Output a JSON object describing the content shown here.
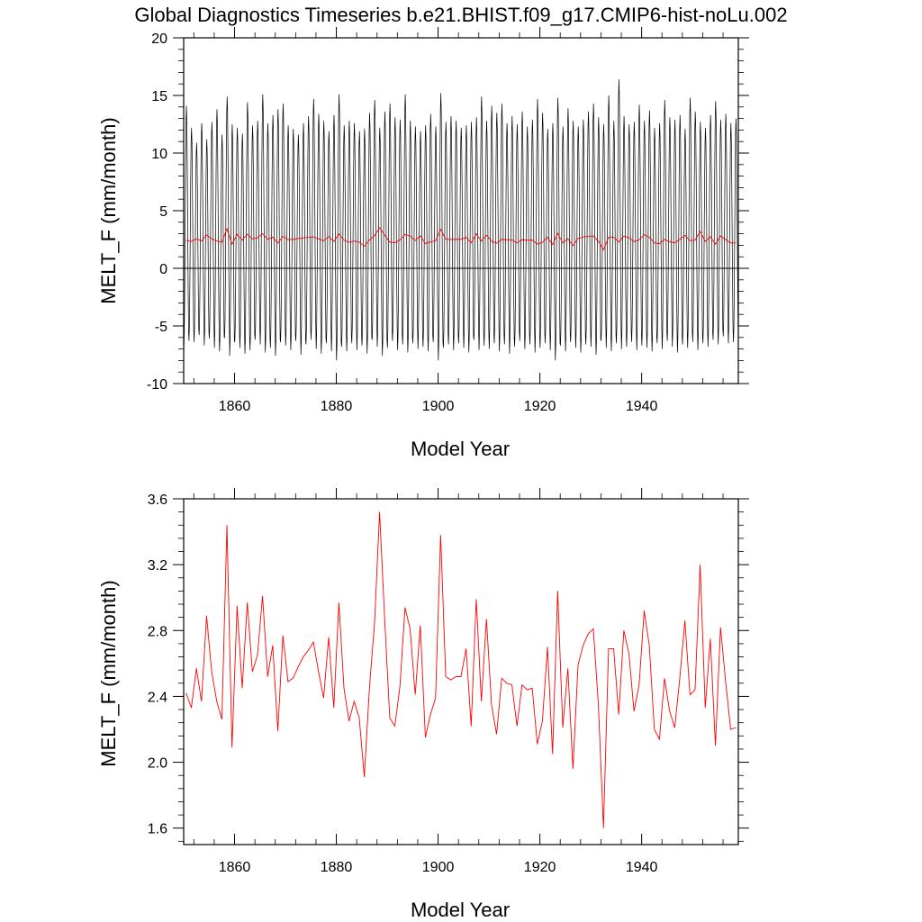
{
  "title": "Global Diagnostics Timeseries b.e21.BHIST.f09_g17.CMIP6-hist-noLu.002",
  "colors": {
    "monthly": "#000000",
    "annual": "#ff0000",
    "axes": "#000000",
    "background": "#ffffff"
  },
  "chart_data": [
    {
      "type": "line",
      "xlabel": "Model Year",
      "ylabel": "MELT_F (mm/month)",
      "xlim": [
        1850,
        1959
      ],
      "ylim": [
        -10,
        20
      ],
      "xticks": [
        1860,
        1880,
        1900,
        1920,
        1940
      ],
      "yticks": [
        -10,
        -5,
        0,
        5,
        10,
        15,
        20
      ],
      "ytick_labels": [
        "-10",
        "-5",
        "0",
        "5",
        "10",
        "15",
        "20"
      ],
      "reference_line_y": 0,
      "series": [
        {
          "color": "#000000",
          "kind": "monthly",
          "annual_max": [
            14.1,
            12.2,
            10.9,
            12.6,
            11.2,
            12.7,
            13.8,
            11.6,
            14.9,
            12.5,
            12.2,
            11.7,
            14.4,
            12.4,
            12.8,
            15.1,
            12.6,
            13.3,
            13.8,
            14.3,
            12.4,
            12.1,
            11.6,
            12.6,
            13.2,
            14.7,
            13.4,
            12.8,
            11.9,
            13.3,
            15.1,
            12.4,
            12.8,
            12.6,
            11.9,
            12.1,
            13.5,
            14.6,
            12.2,
            13.6,
            14.3,
            13.1,
            12.9,
            15.1,
            12.8,
            12.3,
            11.9,
            12.4,
            13.4,
            12.3,
            15.2,
            12.7,
            13.2,
            12.8,
            12.2,
            12.4,
            12.7,
            13.1,
            14.9,
            12.8,
            14.1,
            13.5,
            14.3,
            12.6,
            13.2,
            12.5,
            13.6,
            12.3,
            12.9,
            14.7,
            13.5,
            12.1,
            12.6,
            14.8,
            12.3,
            13.9,
            12.8,
            12.3,
            12.9,
            13.6,
            14.3,
            13.1,
            12.5,
            15.0,
            12.8,
            16.4,
            13.2,
            12.5,
            12.7,
            14.2,
            12.8,
            13.7,
            12.2,
            12.6,
            14.6,
            13.1,
            12.9,
            13.3,
            12.1,
            14.8,
            13.6,
            12.7,
            12.2,
            13.3,
            14.5,
            12.9,
            13.4,
            12.6,
            13.0
          ],
          "annual_min": [
            -6.8,
            -6.3,
            -6.4,
            -5.8,
            -6.7,
            -6.1,
            -6.9,
            -7.2,
            -6.0,
            -7.6,
            -6.4,
            -6.9,
            -7.4,
            -7.1,
            -6.2,
            -6.6,
            -7.3,
            -6.9,
            -7.6,
            -6.4,
            -6.7,
            -7.1,
            -6.3,
            -7.5,
            -6.6,
            -6.2,
            -7.0,
            -7.4,
            -6.5,
            -7.2,
            -8.0,
            -6.8,
            -7.2,
            -6.5,
            -7.1,
            -6.7,
            -7.4,
            -6.2,
            -6.8,
            -7.6,
            -6.9,
            -6.3,
            -7.1,
            -6.6,
            -7.3,
            -6.5,
            -7.0,
            -6.8,
            -7.2,
            -6.4,
            -8.0,
            -6.9,
            -6.6,
            -7.1,
            -6.5,
            -6.9,
            -7.3,
            -6.2,
            -7.1,
            -6.7,
            -7.0,
            -6.5,
            -7.2,
            -6.6,
            -7.4,
            -6.8,
            -6.3,
            -7.0,
            -6.6,
            -7.3,
            -6.9,
            -6.5,
            -7.1,
            -8.0,
            -6.7,
            -7.2,
            -6.4,
            -6.9,
            -7.3,
            -6.6,
            -6.8,
            -7.5,
            -6.3,
            -6.9,
            -7.2,
            -6.5,
            -7.0,
            -6.8,
            -6.4,
            -7.1,
            -6.7,
            -6.9,
            -7.2,
            -6.5,
            -7.0,
            -6.3,
            -6.8,
            -7.3,
            -6.6,
            -6.9,
            -6.4,
            -7.1,
            -6.5,
            -6.8,
            -6.2,
            -6.6,
            -5.9,
            -6.5,
            -6.4
          ]
        },
        {
          "color": "#ff0000",
          "kind": "annual-mean",
          "y": [
            2.42,
            2.33,
            2.57,
            2.37,
            2.89,
            2.55,
            2.37,
            2.26,
            3.44,
            2.09,
            2.95,
            2.45,
            2.97,
            2.55,
            2.65,
            3.01,
            2.52,
            2.71,
            2.19,
            2.77,
            2.49,
            2.51,
            2.58,
            2.64,
            2.68,
            2.73,
            2.55,
            2.39,
            2.76,
            2.33,
            2.97,
            2.45,
            2.25,
            2.37,
            2.27,
            1.91,
            2.45,
            2.84,
            3.52,
            2.87,
            2.27,
            2.22,
            2.46,
            2.94,
            2.81,
            2.41,
            2.83,
            2.15,
            2.29,
            2.39,
            3.38,
            2.52,
            2.5,
            2.52,
            2.52,
            2.69,
            2.22,
            2.99,
            2.37,
            2.87,
            2.35,
            2.17,
            2.51,
            2.48,
            2.47,
            2.22,
            2.47,
            2.44,
            2.45,
            2.11,
            2.25,
            2.7,
            2.05,
            3.04,
            2.21,
            2.57,
            1.96,
            2.59,
            2.71,
            2.78,
            2.81,
            2.35,
            1.6,
            2.69,
            2.69,
            2.29,
            2.8,
            2.66,
            2.31,
            2.47,
            2.92,
            2.71,
            2.2,
            2.14,
            2.51,
            2.31,
            2.21,
            2.51,
            2.86,
            2.41,
            2.44,
            3.2,
            2.33,
            2.75,
            2.1,
            2.82,
            2.49,
            2.2,
            2.21
          ]
        }
      ]
    },
    {
      "type": "line",
      "xlabel": "Model Year",
      "ylabel": "MELT_F (mm/month)",
      "xlim": [
        1850,
        1959
      ],
      "ylim": [
        1.5,
        3.6
      ],
      "xticks": [
        1860,
        1880,
        1900,
        1920,
        1940
      ],
      "yticks": [
        1.6,
        2.0,
        2.4,
        2.8,
        3.2,
        3.6
      ],
      "ytick_labels": [
        "1.6",
        "2.0",
        "2.4",
        "2.8",
        "3.2",
        "3.6"
      ],
      "series": [
        {
          "color": "#ff0000",
          "kind": "annual-mean",
          "y": [
            2.42,
            2.33,
            2.57,
            2.37,
            2.89,
            2.55,
            2.37,
            2.26,
            3.44,
            2.09,
            2.95,
            2.45,
            2.97,
            2.55,
            2.65,
            3.01,
            2.52,
            2.71,
            2.19,
            2.77,
            2.49,
            2.51,
            2.58,
            2.64,
            2.68,
            2.73,
            2.55,
            2.39,
            2.76,
            2.33,
            2.97,
            2.45,
            2.25,
            2.37,
            2.27,
            1.91,
            2.45,
            2.84,
            3.52,
            2.87,
            2.27,
            2.22,
            2.46,
            2.94,
            2.81,
            2.41,
            2.83,
            2.15,
            2.29,
            2.39,
            3.38,
            2.52,
            2.5,
            2.52,
            2.52,
            2.69,
            2.22,
            2.99,
            2.37,
            2.87,
            2.35,
            2.17,
            2.51,
            2.48,
            2.47,
            2.22,
            2.47,
            2.44,
            2.45,
            2.11,
            2.25,
            2.7,
            2.05,
            3.04,
            2.21,
            2.57,
            1.96,
            2.59,
            2.71,
            2.78,
            2.81,
            2.35,
            1.6,
            2.69,
            2.69,
            2.29,
            2.8,
            2.66,
            2.31,
            2.47,
            2.92,
            2.71,
            2.2,
            2.14,
            2.51,
            2.31,
            2.21,
            2.51,
            2.86,
            2.41,
            2.44,
            3.2,
            2.33,
            2.75,
            2.1,
            2.82,
            2.49,
            2.2,
            2.21
          ]
        }
      ]
    }
  ]
}
